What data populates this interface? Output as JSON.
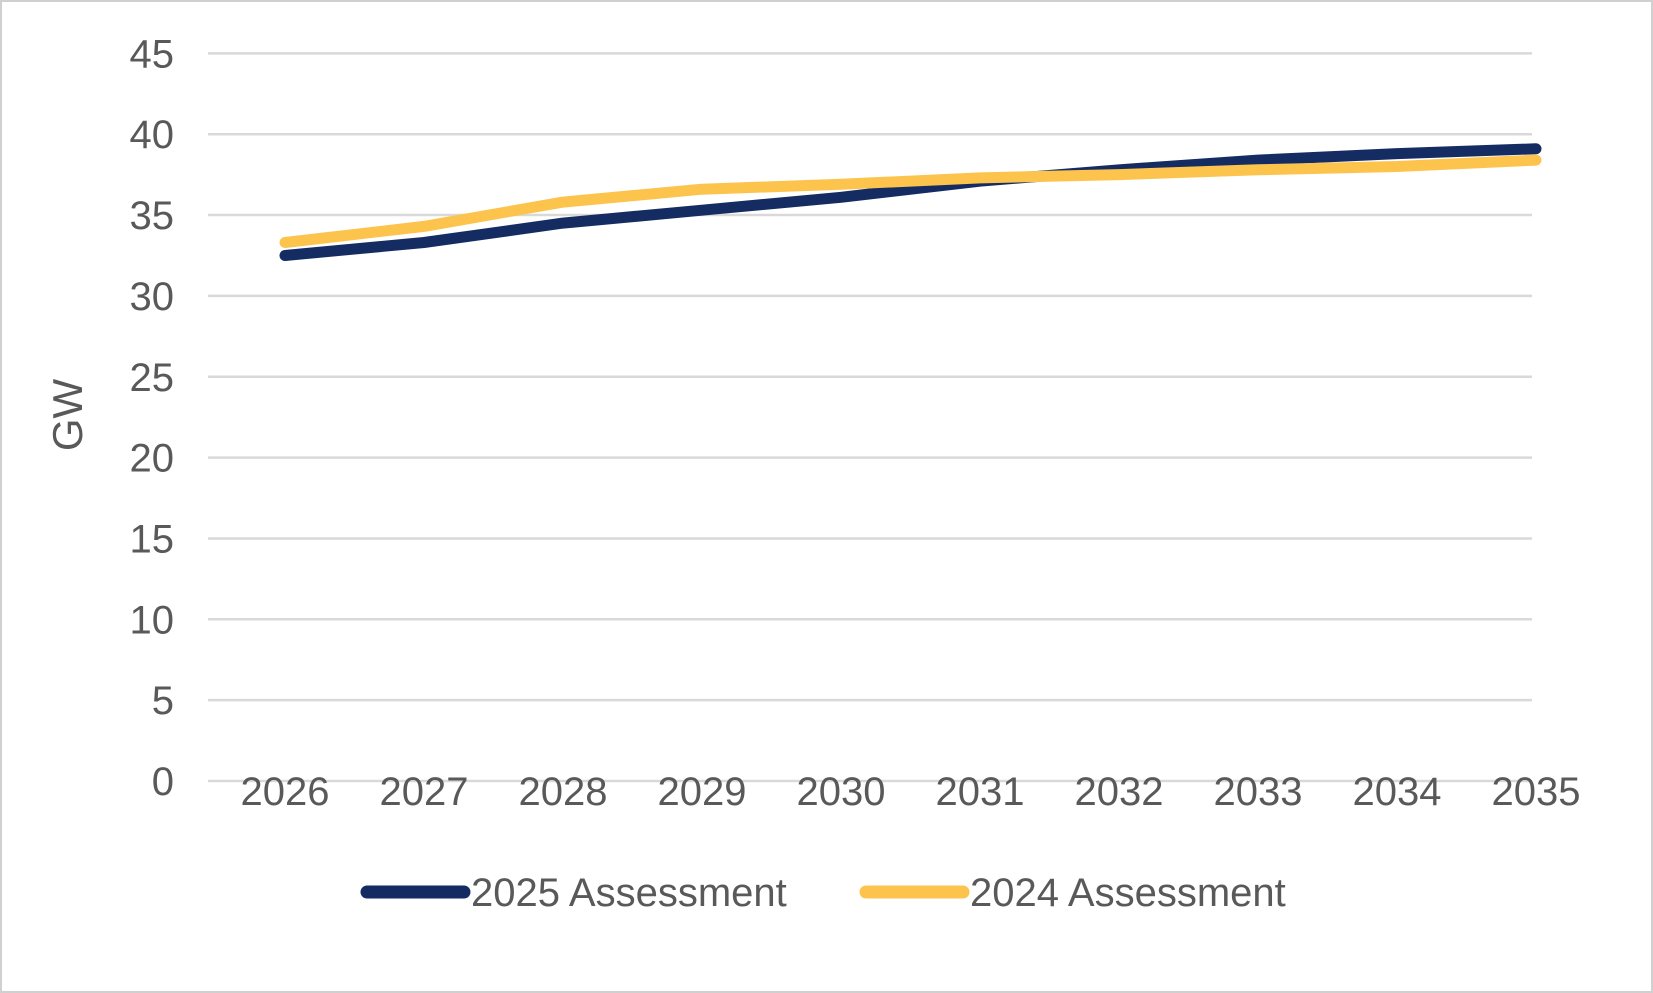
{
  "chart_data": {
    "type": "line",
    "title": "",
    "ylabel": "GW",
    "xlabel": "",
    "ylim": [
      0,
      45
    ],
    "y_ticks": [
      0,
      5,
      10,
      15,
      20,
      25,
      30,
      35,
      40,
      45
    ],
    "grid": "horizontal",
    "legend_position": "bottom",
    "categories": [
      2026,
      2027,
      2028,
      2029,
      2030,
      2031,
      2032,
      2033,
      2034,
      2035
    ],
    "series": [
      {
        "name": "2025 Assessment",
        "color": "#152c62",
        "values": [
          32.5,
          33.3,
          34.5,
          35.3,
          36.1,
          37.1,
          37.8,
          38.4,
          38.8,
          39.1
        ]
      },
      {
        "name": "2024 Assessment",
        "color": "#fcc44d",
        "values": [
          33.3,
          34.3,
          35.8,
          36.6,
          36.9,
          37.3,
          37.5,
          37.8,
          38.0,
          38.4
        ]
      }
    ],
    "colors": {
      "gridline": "#d9d9d9",
      "axis_text": "#595959",
      "background": "#ffffff"
    }
  }
}
